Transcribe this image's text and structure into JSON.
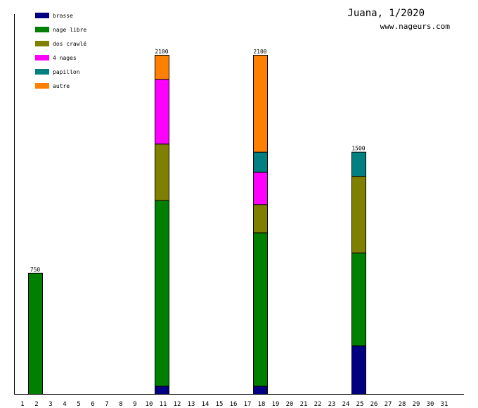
{
  "chart_data": {
    "type": "bar",
    "stacked": true,
    "title": "Juana, 1/2020",
    "subtitle": "www.nageurs.com",
    "xlabel": "",
    "ylabel": "",
    "categories": [
      "1",
      "2",
      "3",
      "4",
      "5",
      "6",
      "7",
      "8",
      "9",
      "10",
      "11",
      "12",
      "13",
      "14",
      "15",
      "16",
      "17",
      "18",
      "19",
      "20",
      "21",
      "22",
      "23",
      "24",
      "25",
      "26",
      "27",
      "28",
      "29",
      "30",
      "31"
    ],
    "ylim": [
      0,
      2100
    ],
    "legend_position": "top-left",
    "series": [
      {
        "name": "brasse",
        "color": "#000080",
        "values": {
          "11": 50,
          "18": 50,
          "25": 300
        }
      },
      {
        "name": "nage libre",
        "color": "#008000",
        "values": {
          "2": 750,
          "11": 1150,
          "18": 950,
          "25": 575
        }
      },
      {
        "name": "dos crawlé",
        "color": "#808000",
        "values": {
          "11": 350,
          "18": 175,
          "25": 475
        }
      },
      {
        "name": "4 nages",
        "color": "#ff00ff",
        "values": {
          "11": 400,
          "18": 200
        }
      },
      {
        "name": "papillon",
        "color": "#008080",
        "values": {
          "18": 125,
          "25": 150
        }
      },
      {
        "name": "autre",
        "color": "#ff8000",
        "values": {
          "11": 150,
          "18": 600
        }
      }
    ],
    "totals": {
      "2": "750",
      "11": "2100",
      "18": "2100",
      "25": "1500"
    }
  }
}
